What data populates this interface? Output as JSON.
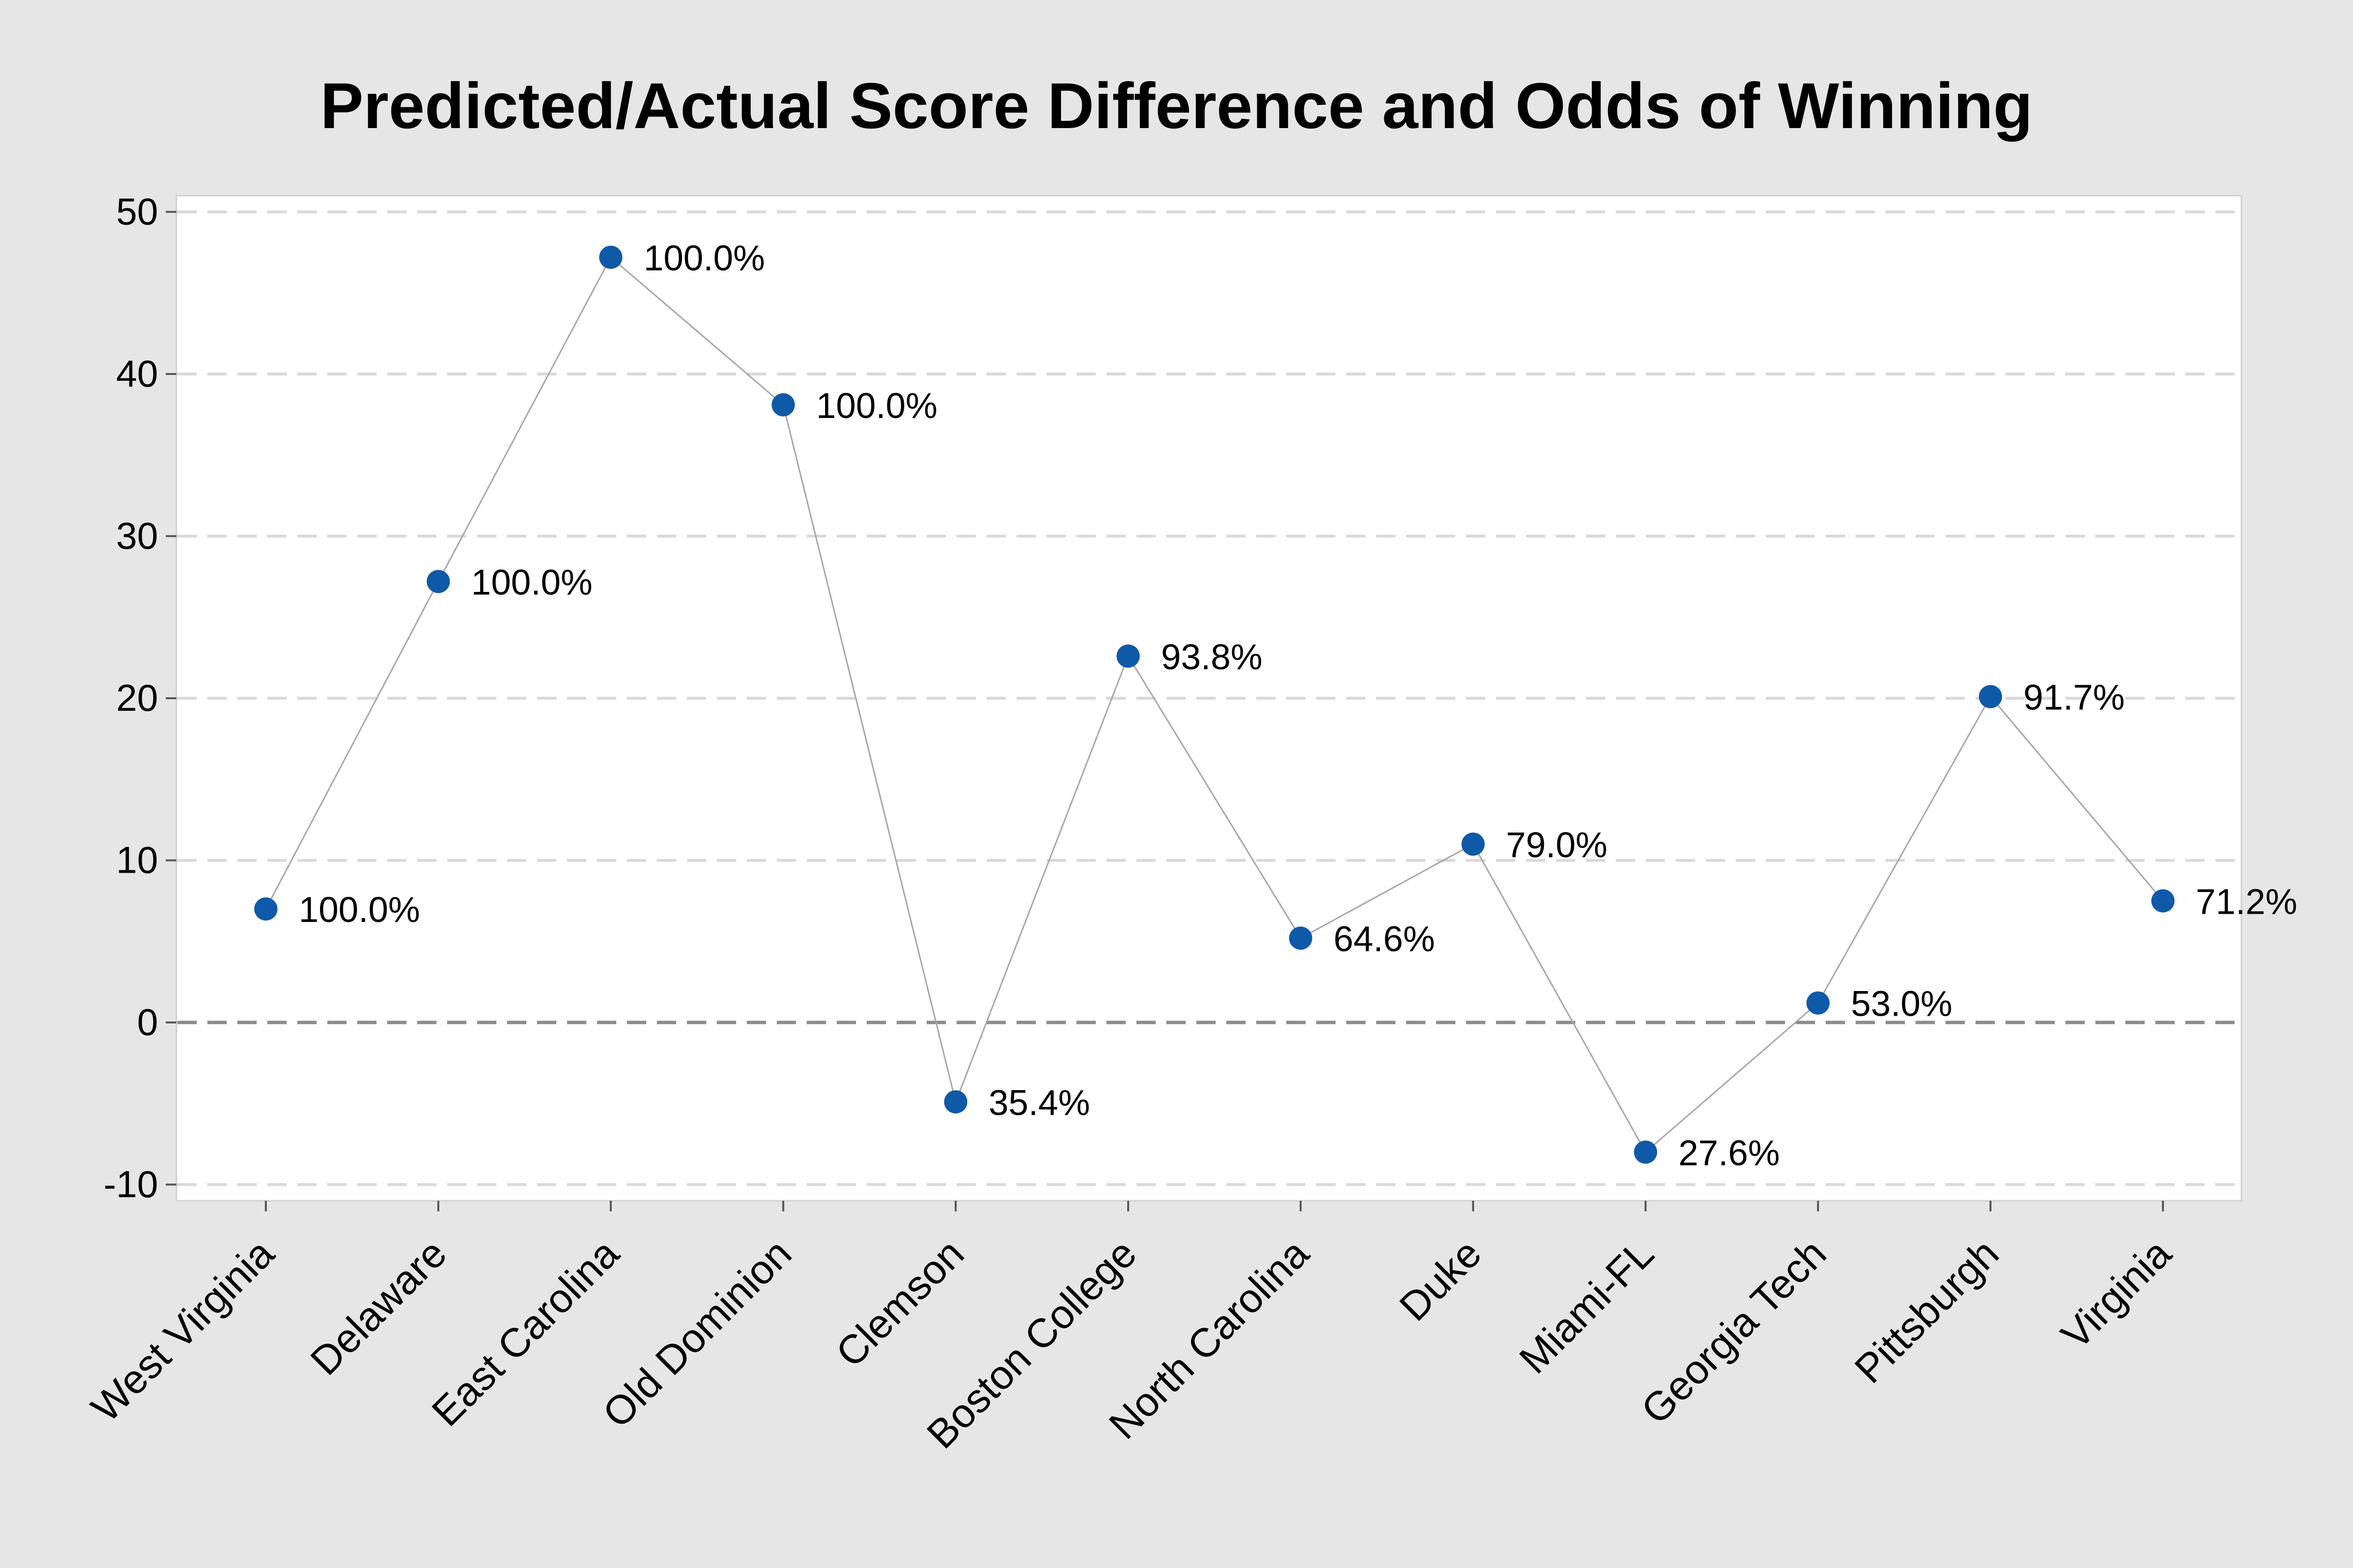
{
  "chart_data": {
    "type": "line",
    "title": "Predicted/Actual Score Difference and Odds of Winning",
    "xlabel": "",
    "ylabel": "",
    "ylim": [
      -11,
      51
    ],
    "yticks": [
      -10,
      0,
      10,
      20,
      30,
      40,
      50
    ],
    "grid": true,
    "reference_line_y": 0,
    "categories": [
      "West Virginia",
      "Delaware",
      "East Carolina",
      "Old Dominion",
      "Clemson",
      "Boston College",
      "North Carolina",
      "Duke",
      "Miami-FL",
      "Georgia Tech",
      "Pittsburgh",
      "Virginia"
    ],
    "values": [
      7,
      27.2,
      47.2,
      38.1,
      -4.9,
      22.6,
      5.2,
      11,
      -8,
      1.2,
      20.1,
      7.5
    ],
    "point_labels": [
      "100.0%",
      "100.0%",
      "100.0%",
      "100.0%",
      "35.4%",
      "93.8%",
      "64.6%",
      "79.0%",
      "27.6%",
      "53.0%",
      "91.7%",
      "71.2%"
    ],
    "colors": {
      "marker": "#0f5aa8",
      "line": "#a6a6a6",
      "grid": "#d9d9d9",
      "zero_line": "#8c8c8c",
      "background": "#e6e6e6",
      "plot_background": "#ffffff"
    }
  }
}
